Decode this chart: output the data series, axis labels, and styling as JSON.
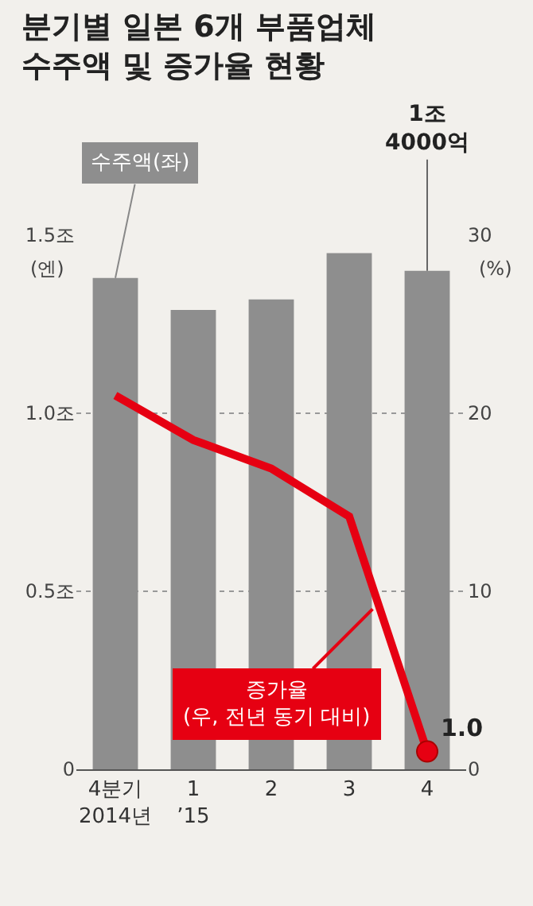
{
  "chart_data": {
    "type": "bar",
    "title": "분기별 일본 6개 부품업체\n수주액 및 증가율 현황",
    "categories": [
      "4분기\n2014년",
      "1\n’15",
      "2",
      "3",
      "4"
    ],
    "series": [
      {
        "name": "수주액(좌)",
        "color": "#8e8e8e",
        "values": [
          1.38,
          1.29,
          1.32,
          1.45,
          1.4
        ],
        "value_labels": [
          null,
          null,
          null,
          null,
          "1조\n4000억"
        ]
      },
      {
        "name": "증가율\n(우, 전년 동기 대비)",
        "type": "line",
        "axis": "y2",
        "color": "#e60012",
        "values": [
          21.0,
          18.5,
          16.9,
          14.2,
          1.0
        ],
        "value_labels": [
          null,
          null,
          null,
          null,
          "1.0"
        ]
      }
    ],
    "ylabel": "(엔)",
    "y2label": "(%)",
    "ylim": [
      0,
      1.5
    ],
    "yticks": [
      0,
      {
        "value": 0.5,
        "label": "0.5조"
      },
      {
        "value": 1.0,
        "label": "1.0조"
      },
      {
        "value": 1.5,
        "label": "1.5조"
      }
    ],
    "y2lim": [
      0,
      30
    ],
    "y2ticks": [
      0,
      10,
      20,
      30
    ],
    "grid": "y",
    "line_style": "solid",
    "marker": "none"
  }
}
